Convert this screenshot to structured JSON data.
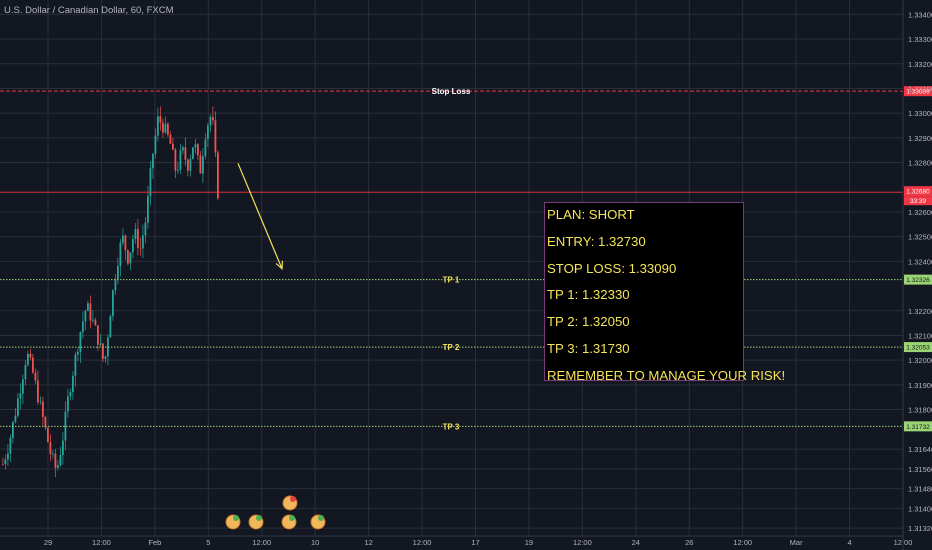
{
  "chart_title": "U.S. Dollar / Canadian Dollar, 60, FXCM",
  "chart_data": {
    "type": "candlestick",
    "instrument": "U.S. Dollar / Canadian Dollar",
    "interval": "60",
    "source": "FXCM",
    "y_axis": {
      "range": [
        1.3128,
        1.3345
      ],
      "ticks": [
        "1.33400",
        "1.33300",
        "1.33200",
        "1.33100",
        "1.33000",
        "1.32900",
        "1.32800",
        "1.32600",
        "1.32500",
        "1.32400",
        "1.32200",
        "1.32100",
        "1.32000",
        "1.31900",
        "1.31800",
        "1.31640",
        "1.31560",
        "1.31480",
        "1.31400",
        "1.31320"
      ]
    },
    "x_axis": {
      "ticks": [
        "29",
        "12:00",
        "Feb",
        "5",
        "12:00",
        "10",
        "12",
        "12:00",
        "17",
        "19",
        "12:00",
        "24",
        "26",
        "12:00",
        "Mar",
        "4",
        "12:00"
      ]
    },
    "levels": [
      {
        "name": "Stop Loss",
        "value": 1.33089,
        "badge": "1.33089",
        "color": "#f23645",
        "style": "dashed"
      },
      {
        "name": "TP 1",
        "value": 1.32326,
        "badge": "1.32326",
        "color": "#9bd472",
        "style": "dotted"
      },
      {
        "name": "TP 2",
        "value": 1.32053,
        "badge": "1.32053",
        "color": "#9bd472",
        "style": "dotted"
      },
      {
        "name": "TP 3",
        "value": 1.31732,
        "badge": "1.31732",
        "color": "#9bd472",
        "style": "dotted"
      }
    ],
    "current_price": {
      "value": 1.3268,
      "badge": "1.32680",
      "countdown": "33:39",
      "color": "#f23645"
    },
    "price_path": [
      1.3158,
      1.3166,
      1.3178,
      1.319,
      1.3203,
      1.3195,
      1.3184,
      1.3173,
      1.3162,
      1.3155,
      1.3168,
      1.3186,
      1.3199,
      1.3212,
      1.3222,
      1.3216,
      1.3208,
      1.3198,
      1.322,
      1.3238,
      1.325,
      1.3241,
      1.3252,
      1.3245,
      1.3258,
      1.3282,
      1.3298,
      1.3294,
      1.3288,
      1.3276,
      1.3285,
      1.3279,
      1.3289,
      1.3276,
      1.3294,
      1.33,
      1.3268
    ],
    "arrow": {
      "from_value": 1.32797,
      "to_value": 1.3237,
      "color": "#f5e35a"
    },
    "colors": {
      "up": "#26a69a",
      "down": "#ef5350",
      "background": "#131722",
      "grid": "#2a2e39"
    }
  },
  "plan_box": {
    "lines": [
      "PLAN: SHORT",
      "ENTRY: 1.32730",
      "STOP LOSS: 1.33090",
      "TP 1: 1.32330",
      "TP 2: 1.32050",
      "TP 3: 1.31730",
      "REMEMBER TO MANAGE YOUR RISK!"
    ]
  }
}
